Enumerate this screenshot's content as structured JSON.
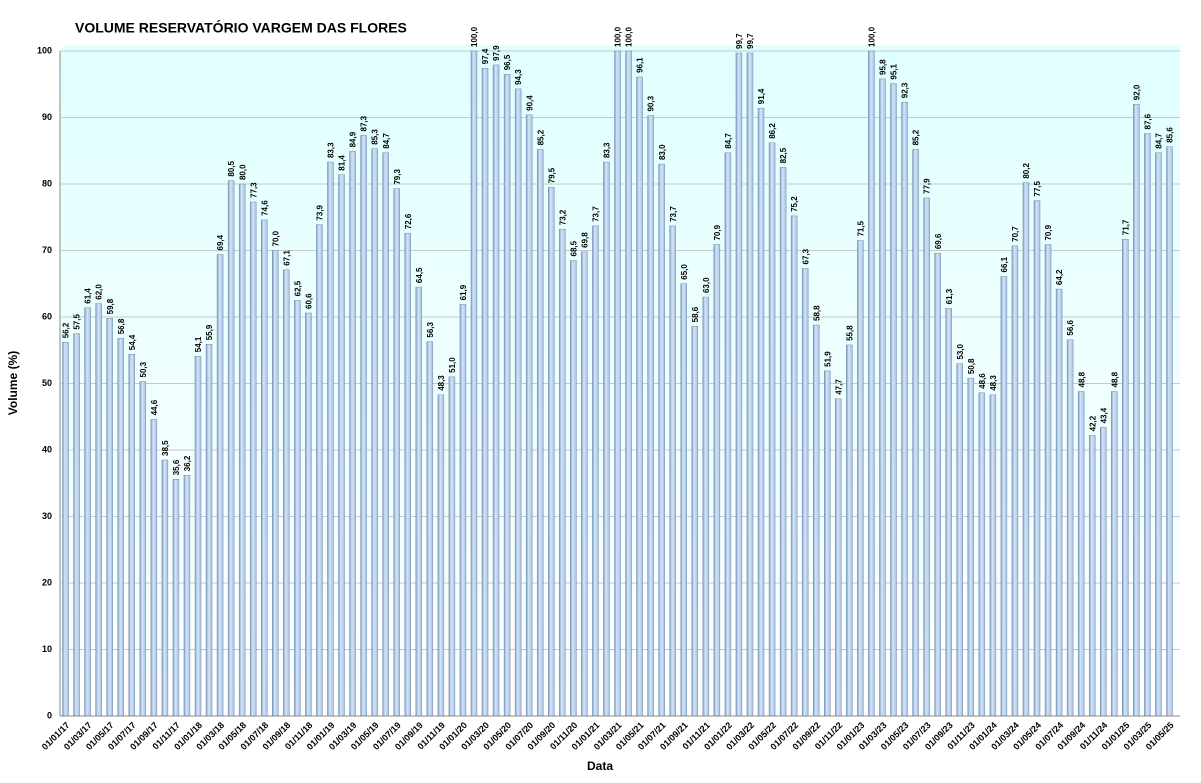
{
  "chart_data": {
    "type": "bar",
    "title": "VOLUME RESERVATÓRIO VARGEM DAS FLORES",
    "x_label": "Data",
    "y_label": "Volume (%)",
    "color": "#b8d0ea",
    "ylim": [
      0,
      100
    ],
    "yticks": [
      0,
      10,
      20,
      30,
      40,
      50,
      60,
      70,
      80,
      90,
      100
    ],
    "grid": true,
    "categories": [
      "01/01/17",
      null,
      "01/03/17",
      null,
      "01/05/17",
      null,
      "01/07/17",
      null,
      "01/09/17",
      null,
      "01/11/17",
      null,
      "01/01/18",
      null,
      "01/03/18",
      null,
      "01/05/18",
      null,
      "01/07/18",
      null,
      "01/09/18",
      null,
      "01/11/18",
      null,
      "01/01/19",
      null,
      "01/03/19",
      null,
      "01/05/19",
      null,
      "01/07/19",
      null,
      "01/09/19",
      null,
      "01/11/19",
      null,
      "01/01/20",
      null,
      "01/03/20",
      null,
      "01/05/20",
      null,
      "01/07/20",
      null,
      "01/09/20",
      null,
      "01/11/20",
      null,
      "01/01/21",
      null,
      "01/03/21",
      null,
      "01/05/21",
      null,
      "01/07/21",
      null,
      "01/09/21",
      null,
      "01/11/21",
      null,
      "01/01/22",
      null,
      "01/03/22",
      null,
      "01/05/22",
      null,
      "01/07/22",
      null,
      "01/09/22",
      null,
      "01/11/22",
      null,
      "01/01/23",
      null,
      "01/03/23",
      null,
      "01/05/23",
      null,
      "01/07/23",
      null,
      "01/09/23",
      null,
      "01/11/23",
      null,
      "01/01/24",
      null,
      "01/03/24",
      null,
      "01/05/24",
      null,
      "01/07/24",
      null,
      "01/09/24",
      null,
      "01/11/24",
      null,
      "01/01/25",
      null,
      "01/03/25",
      null,
      "01/05/25"
    ],
    "values": [
      56.2,
      57.5,
      61.4,
      62.0,
      59.8,
      56.8,
      54.4,
      50.3,
      44.6,
      38.5,
      35.6,
      36.2,
      54.1,
      55.9,
      69.4,
      80.5,
      80.0,
      77.3,
      74.6,
      70.0,
      67.1,
      62.5,
      60.6,
      73.9,
      83.3,
      81.4,
      84.9,
      87.3,
      85.3,
      84.7,
      79.3,
      72.6,
      64.5,
      56.3,
      48.3,
      51.0,
      61.9,
      100.0,
      97.4,
      97.9,
      96.5,
      94.3,
      90.4,
      85.2,
      79.5,
      73.2,
      68.5,
      69.8,
      73.7,
      83.3,
      100.0,
      100.0,
      96.1,
      90.3,
      83.0,
      73.7,
      65.0,
      58.6,
      63.0,
      70.9,
      84.7,
      99.7,
      99.7,
      91.4,
      86.2,
      82.5,
      75.2,
      67.3,
      58.8,
      51.9,
      47.7,
      55.8,
      71.5,
      100.0,
      95.8,
      95.1,
      92.3,
      85.2,
      77.9,
      69.6,
      61.3,
      53.0,
      50.8,
      48.6,
      48.3,
      66.1,
      70.7,
      80.2,
      77.5,
      70.9,
      64.2,
      56.6,
      48.8,
      42.2,
      43.4,
      48.8,
      71.7,
      92.0,
      87.6,
      84.7,
      85.6
    ],
    "value_labels": [
      "56,2",
      "57,5",
      "61,4",
      "62,0",
      "59,8",
      "56,8",
      "54,4",
      "50,3",
      "44,6",
      "38,5",
      "35,6",
      "36,2",
      "54,1",
      "55,9",
      "69,4",
      "80,5",
      "80,0",
      "77,3",
      "74,6",
      "70,0",
      "67,1",
      "62,5",
      "60,6",
      "73,9",
      "83,3",
      "81,4",
      "84,9",
      "87,3",
      "85,3",
      "84,7",
      "79,3",
      "72,6",
      "64,5",
      "56,3",
      "48,3",
      "51,0",
      "61,9",
      "100,0",
      "97,4",
      "97,9",
      "96,5",
      "94,3",
      "90,4",
      "85,2",
      "79,5",
      "73,2",
      "68,5",
      "69,8",
      "73,7",
      "83,3",
      "100,0",
      "100,0",
      "96,1",
      "90,3",
      "83,0",
      "73,7",
      "65,0",
      "58,6",
      "63,0",
      "70,9",
      "84,7",
      "99,7",
      "99,7",
      "91,4",
      "86,2",
      "82,5",
      "75,2",
      "67,3",
      "58,8",
      "51,9",
      "47,7",
      "55,8",
      "71,5",
      "100,0",
      "95,8",
      "95,1",
      "92,3",
      "85,2",
      "77,9",
      "69,6",
      "61,3",
      "53,0",
      "50,8",
      "48,6",
      "48,3",
      "66,1",
      "70,7",
      "80,2",
      "77,5",
      "70,9",
      "64,2",
      "56,6",
      "48,8",
      "42,2",
      "43,4",
      "48,8",
      "71,7",
      "92,0",
      "87,6",
      "84,7",
      "85,6"
    ]
  }
}
